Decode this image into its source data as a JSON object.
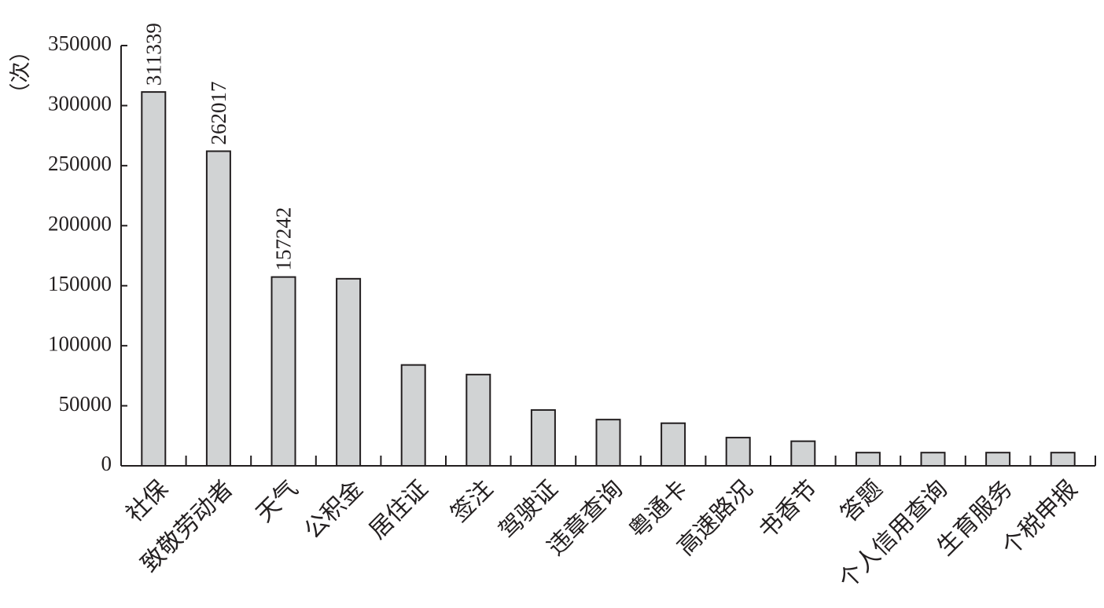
{
  "chart_data": {
    "type": "bar",
    "title": "",
    "xlabel": "",
    "ylabel": "（次）",
    "ylim": [
      0,
      350000
    ],
    "yticks": [
      0,
      50000,
      100000,
      150000,
      200000,
      250000,
      300000,
      350000
    ],
    "ytick_labels": [
      "0",
      "50000",
      "100000",
      "150000",
      "200000",
      "250000",
      "300000",
      "350000"
    ],
    "grid": false,
    "legend": "none",
    "categories": [
      "社保",
      "致敬劳动者",
      "天气",
      "公积金",
      "居住证",
      "签注",
      "驾驶证",
      "违章查询",
      "粤通卡",
      "高速路况",
      "书香节",
      "答题",
      "个人信用查询",
      "生育服务",
      "个税申报"
    ],
    "values": [
      311339,
      262017,
      157242,
      155800,
      84000,
      76000,
      46500,
      38500,
      35500,
      23500,
      20500,
      11000,
      11000,
      11000,
      11000
    ],
    "data_labels": [
      "311339",
      "262017",
      "157242",
      null,
      null,
      null,
      null,
      null,
      null,
      null,
      null,
      null,
      null,
      null,
      null
    ],
    "colors": {
      "bar_fill": "#d1d3d4",
      "bar_stroke": "#231f20",
      "axis": "#231f20",
      "text": "#231f20"
    }
  }
}
